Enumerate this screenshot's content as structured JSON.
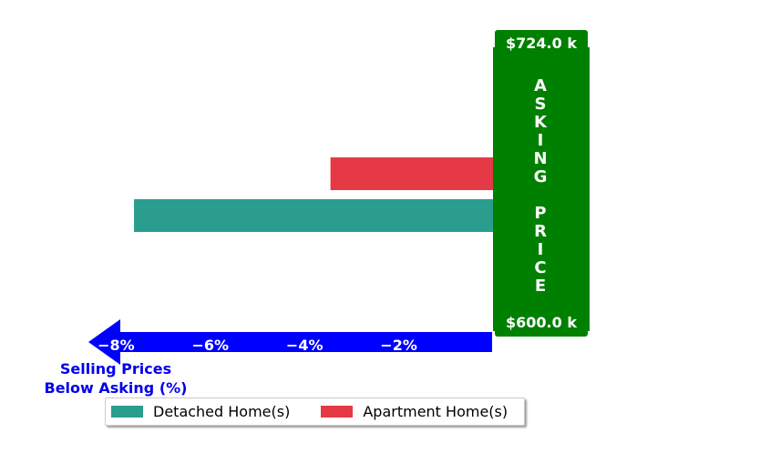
{
  "chart_data": {
    "type": "bar",
    "orientation": "horizontal",
    "series": [
      {
        "name": "Detached Home(s)",
        "values": [
          -7.62
        ],
        "color": "#2a9d8f"
      },
      {
        "name": "Apartment Home(s)",
        "values": [
          -3.45
        ],
        "color": "#e63946"
      }
    ],
    "x_ticks": [
      "−8%",
      "−6%",
      "−4%",
      "−2%"
    ],
    "x_tick_values": [
      -8,
      -6,
      -4,
      -2
    ],
    "xlim": [
      -8.5,
      0
    ],
    "xlabel": "Selling Prices\nBelow Asking (%)",
    "xlabel_color": "#0000ee",
    "axis_arrow_color": "#0000ff",
    "asking_price_label": "ASKING PRICE",
    "asking_top_label": "$724.0 k",
    "asking_bottom_label": "$600.0 k",
    "asking_color": "#008000",
    "legend_position": "bottom"
  }
}
